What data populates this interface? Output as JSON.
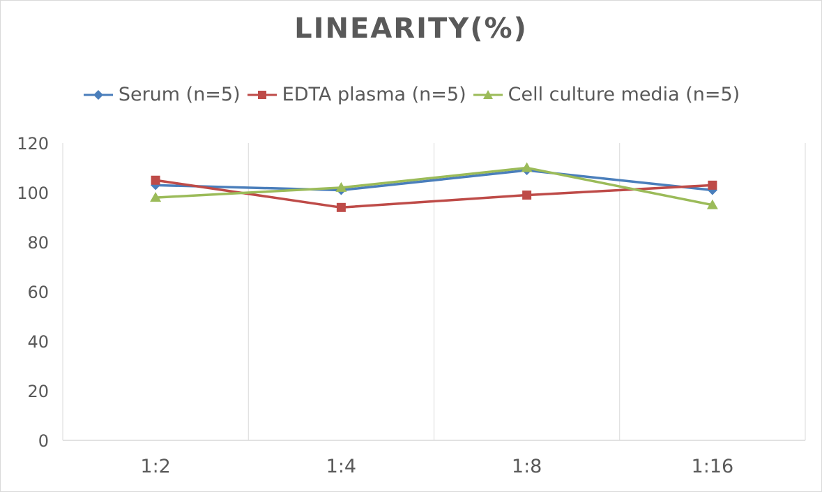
{
  "chart_data": {
    "type": "line",
    "title": "LINEARITY(%)",
    "categories": [
      "1:2",
      "1:4",
      "1:8",
      "1:16"
    ],
    "ylim": [
      0,
      120
    ],
    "yticks": [
      0,
      20,
      40,
      60,
      80,
      100,
      120
    ],
    "grid": "vertical",
    "legend_position": "top",
    "series": [
      {
        "name": "Serum (n=5)",
        "values": [
          103,
          101,
          109,
          101
        ],
        "color": "#4a7ebb",
        "marker": "diamond"
      },
      {
        "name": "EDTA plasma (n=5)",
        "values": [
          105,
          94,
          99,
          103
        ],
        "color": "#be4b48",
        "marker": "square"
      },
      {
        "name": "Cell culture media (n=5)",
        "values": [
          98,
          102,
          110,
          95
        ],
        "color": "#9bbb59",
        "marker": "triangle"
      }
    ]
  }
}
